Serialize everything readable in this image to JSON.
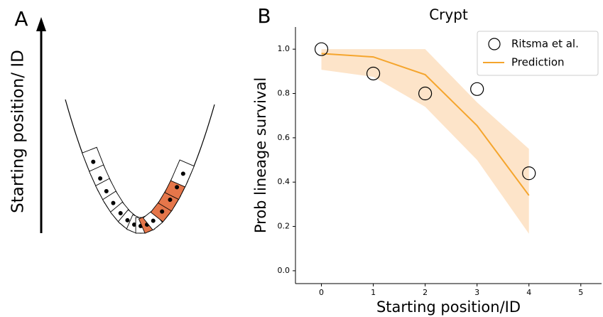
{
  "panel_labels": [
    "A",
    "B"
  ],
  "diagram": {
    "axis_label": "Starting position/ ID"
  },
  "chart_data": {
    "type": "line",
    "title": "Crypt",
    "x_label": "Starting position/ID",
    "y_label": "Prob lineage survival",
    "x": [
      0,
      1,
      2,
      3,
      4
    ],
    "series": [
      {
        "name": "Ritsma et al.",
        "kind": "scatter",
        "color": "#000000",
        "values": [
          1.0,
          0.89,
          0.8,
          0.82,
          0.44
        ]
      },
      {
        "name": "Prediction",
        "kind": "line",
        "color": "#f5a52d",
        "band_color": "#fde4c9",
        "values": [
          0.98,
          0.965,
          0.885,
          0.655,
          0.34
        ],
        "lower": [
          0.907,
          0.875,
          0.74,
          0.5,
          0.167
        ],
        "upper": [
          1.0,
          1.0,
          1.0,
          0.76,
          0.55
        ]
      }
    ],
    "xlim": [
      -0.5,
      5.4
    ],
    "ylim": [
      -0.058,
      1.1
    ],
    "xticks": [
      0,
      1,
      2,
      3,
      4,
      5
    ],
    "yticks": [
      {
        "value": 0,
        "label": "0.0"
      },
      0.2,
      0.4,
      0.6,
      0.8,
      {
        "value": 1,
        "label": "1.0"
      }
    ],
    "legend": "upper right"
  }
}
